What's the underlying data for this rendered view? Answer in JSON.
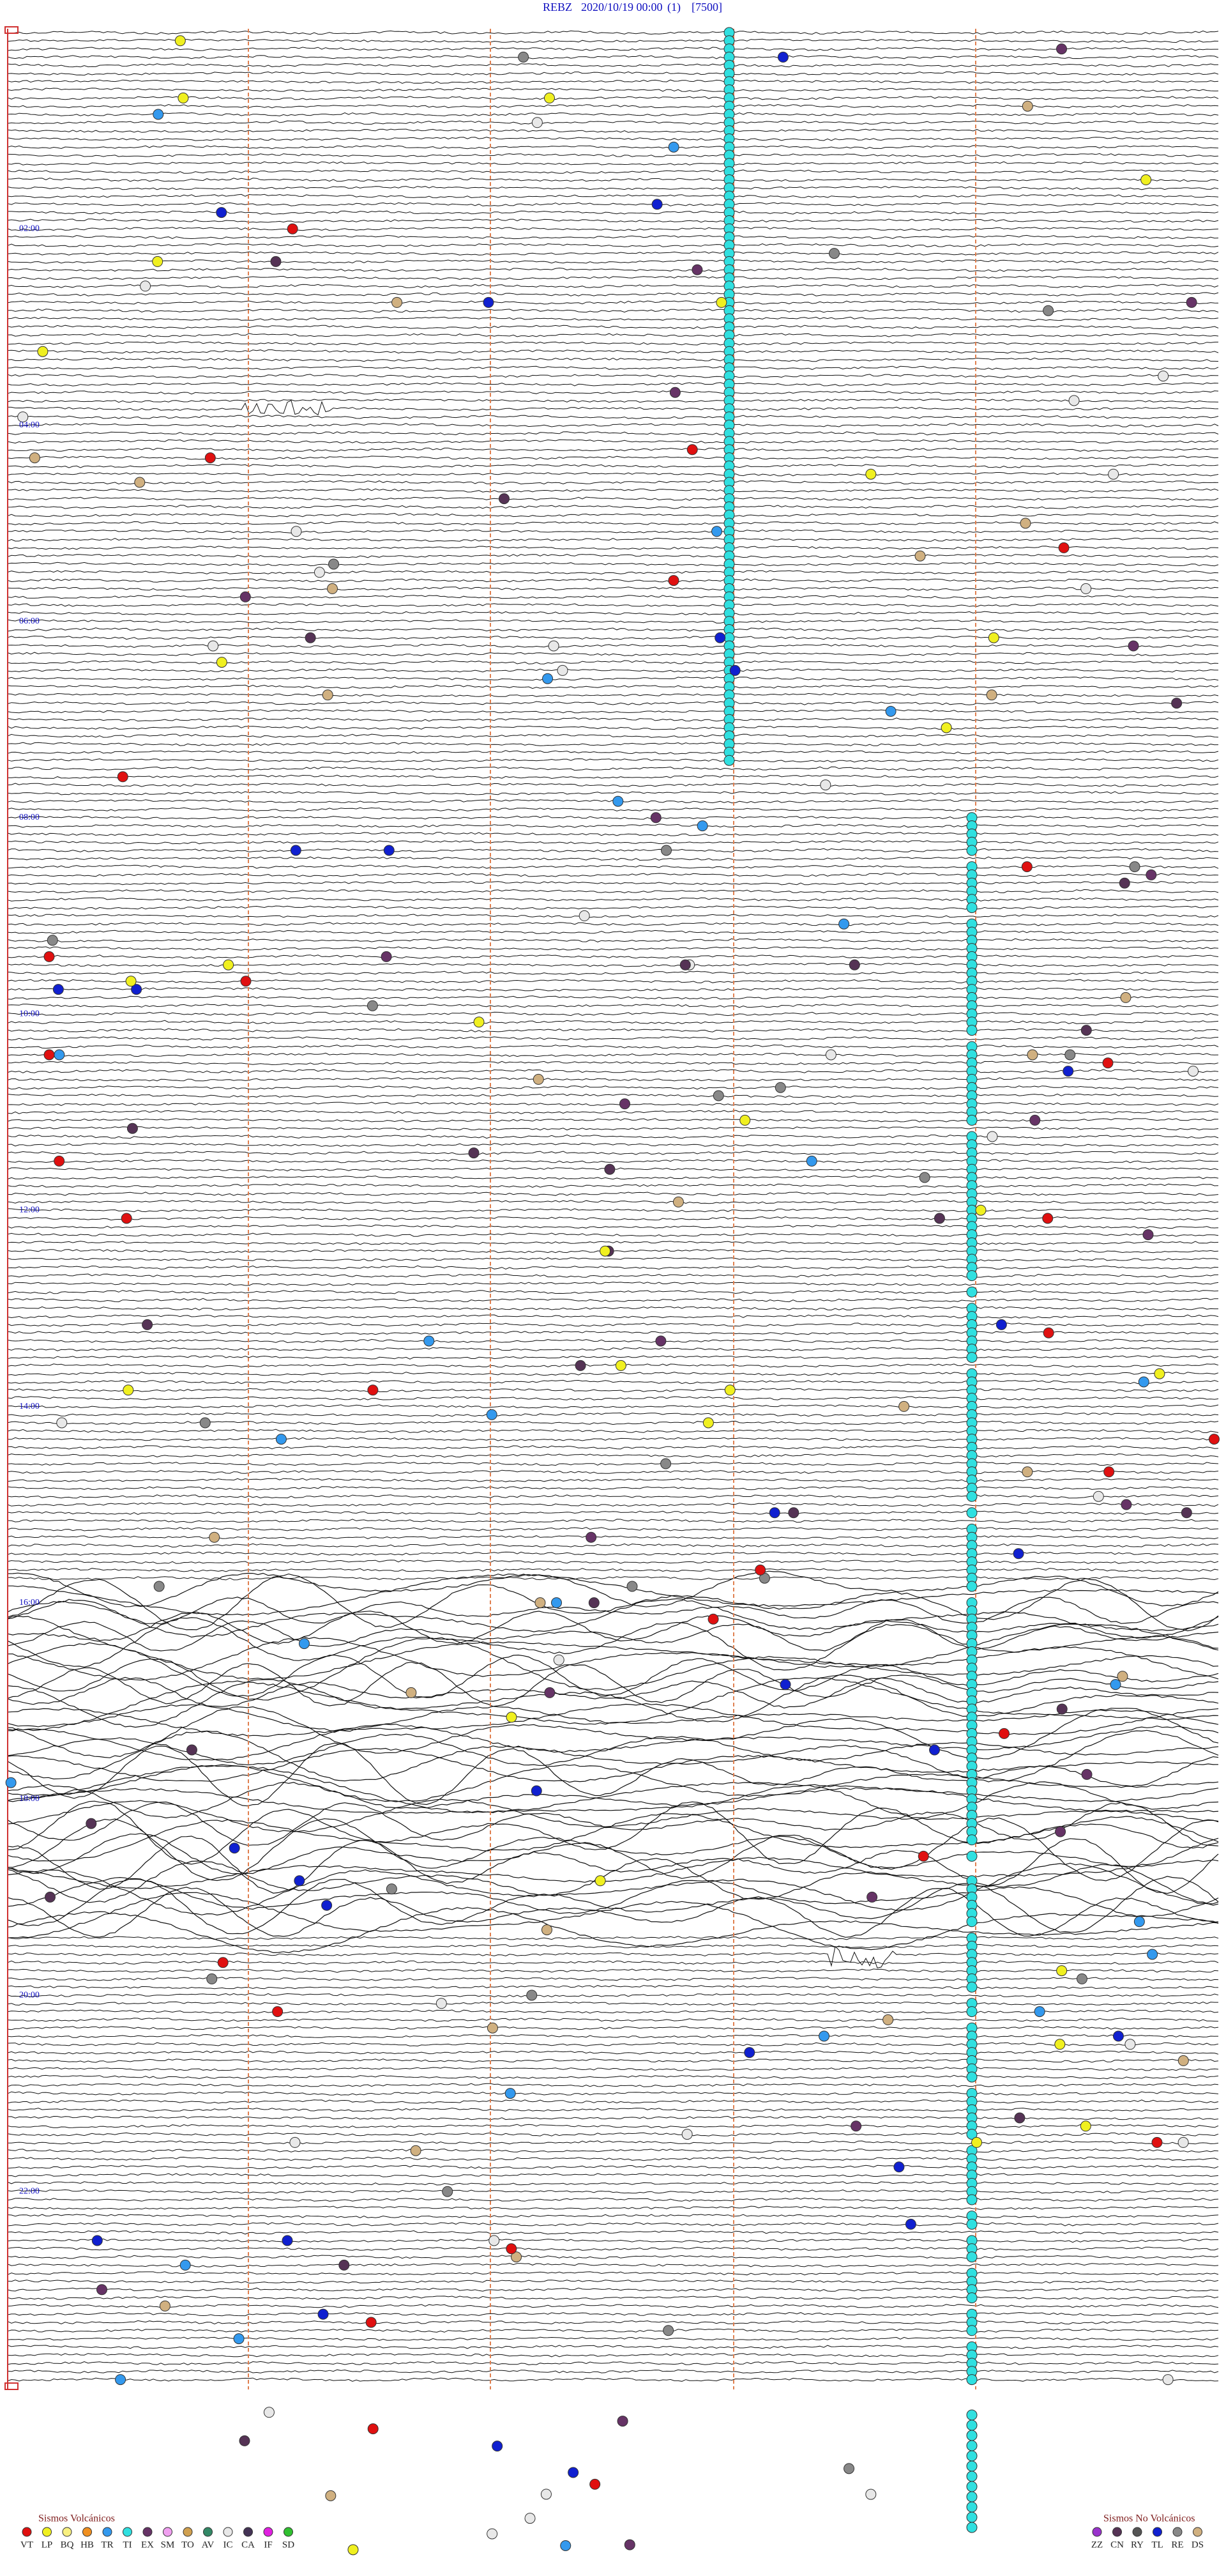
{
  "header": {
    "station": "REBZ",
    "date": "2020/10/19 00:00",
    "run": "(1)",
    "scale": "[7500]"
  },
  "hour_labels": [
    "02:00",
    "04:00",
    "06:00",
    "08:00",
    "10:00",
    "12:00",
    "14:00",
    "16:00",
    "18:00",
    "20:00",
    "22:00"
  ],
  "legend_volcanic": {
    "title": "Sismos Volcánicos",
    "items": [
      {
        "code": "VT",
        "color": "#e01010"
      },
      {
        "code": "LP",
        "color": "#f0f020"
      },
      {
        "code": "BQ",
        "color": "#f8f080"
      },
      {
        "code": "HB",
        "color": "#f09020"
      },
      {
        "code": "TR",
        "color": "#3399ee"
      },
      {
        "code": "TI",
        "color": "#30e0e0"
      },
      {
        "code": "EX",
        "color": "#663366"
      },
      {
        "code": "SM",
        "color": "#f0a0f0"
      },
      {
        "code": "TO",
        "color": "#d0a050"
      },
      {
        "code": "AV",
        "color": "#338866"
      },
      {
        "code": "IC",
        "color": "#e8e8e8"
      },
      {
        "code": "CA",
        "color": "#443355"
      },
      {
        "code": "IF",
        "color": "#e020e0"
      },
      {
        "code": "SD",
        "color": "#30c030"
      }
    ]
  },
  "legend_nonvolcanic": {
    "title": "Sismos No Volcánicos",
    "items": [
      {
        "code": "ZZ",
        "color": "#9933cc"
      },
      {
        "code": "CN",
        "color": "#553355"
      },
      {
        "code": "RY",
        "color": "#555555"
      },
      {
        "code": "TL",
        "color": "#1020d0"
      },
      {
        "code": "RE",
        "color": "#888888"
      },
      {
        "code": "DS",
        "color": "#d0b080"
      }
    ]
  }
}
